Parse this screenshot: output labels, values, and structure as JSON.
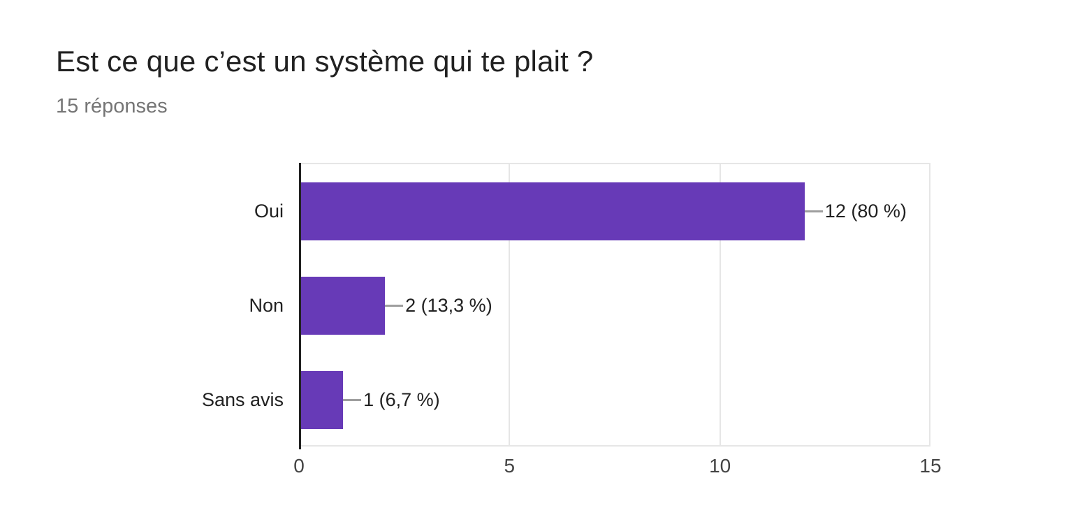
{
  "header": {
    "title": "Est ce que c’est un système qui te plait ?",
    "responses_count": "15 réponses"
  },
  "chart_data": {
    "type": "bar",
    "orientation": "horizontal",
    "title": "Est ce que c’est un système qui te plait ?",
    "subtitle": "15 réponses",
    "categories": [
      "Oui",
      "Non",
      "Sans avis"
    ],
    "values": [
      12,
      2,
      1
    ],
    "percentages": [
      80,
      13.3,
      6.7
    ],
    "value_labels": [
      "12 (80 %)",
      "2 (13,3 %)",
      "1 (6,7 %)"
    ],
    "x_ticks": [
      "0",
      "5",
      "10",
      "15"
    ],
    "xlim": [
      0,
      15
    ],
    "xlabel": "",
    "ylabel": "",
    "grid": "vertical",
    "legend": "none",
    "colors": {
      "bar": "#673ab7",
      "axis": "#212121",
      "gridline": "#e6e6e6",
      "connector": "#9e9e9e",
      "title": "#212121",
      "subtitle": "#757575",
      "tick": "#444444",
      "label": "#212121"
    }
  }
}
